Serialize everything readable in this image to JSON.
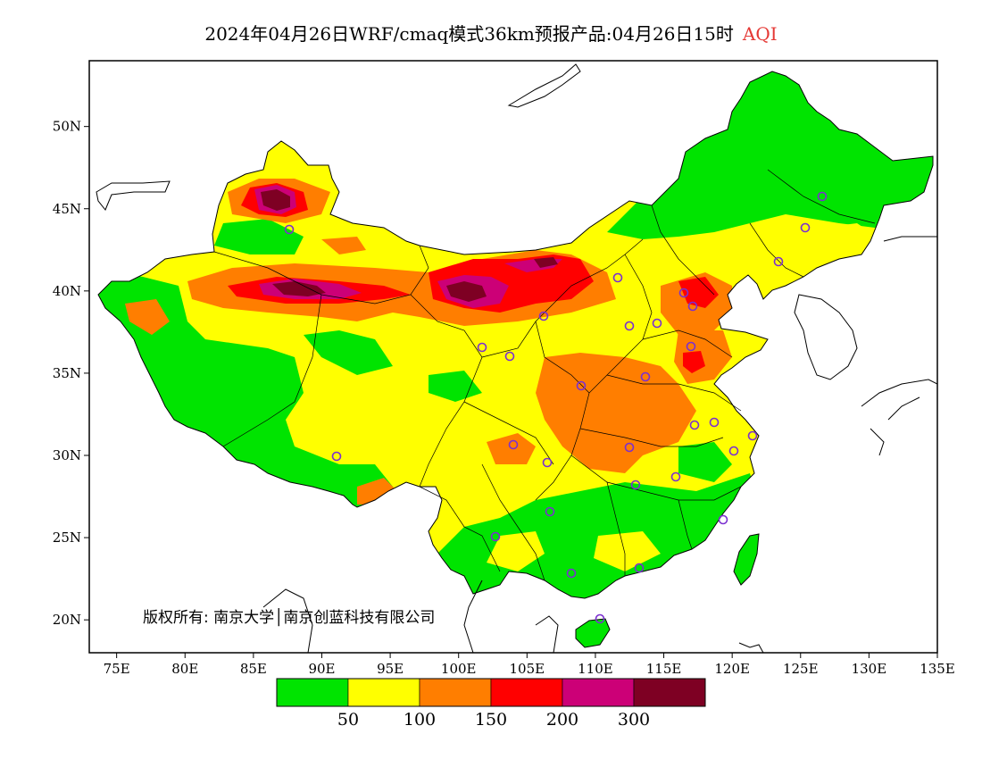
{
  "title": {
    "text": "2024年04月26日WRF/cmaq模式36km预报产品:04月26日15时",
    "variable": "AQI",
    "variable_color": "#e53935"
  },
  "map": {
    "lon_range": [
      73,
      135
    ],
    "lat_range": [
      18,
      54
    ],
    "lon_ticks": [
      {
        "value": 75,
        "label": "75E"
      },
      {
        "value": 80,
        "label": "80E"
      },
      {
        "value": 85,
        "label": "85E"
      },
      {
        "value": 90,
        "label": "90E"
      },
      {
        "value": 95,
        "label": "95E"
      },
      {
        "value": 100,
        "label": "100E"
      },
      {
        "value": 105,
        "label": "105E"
      },
      {
        "value": 110,
        "label": "110E"
      },
      {
        "value": 115,
        "label": "115E"
      },
      {
        "value": 120,
        "label": "120E"
      },
      {
        "value": 125,
        "label": "125E"
      },
      {
        "value": 130,
        "label": "130E"
      },
      {
        "value": 135,
        "label": "135E"
      }
    ],
    "lat_ticks": [
      {
        "value": 20,
        "label": "20N"
      },
      {
        "value": 25,
        "label": "25N"
      },
      {
        "value": 30,
        "label": "30N"
      },
      {
        "value": 35,
        "label": "35N"
      },
      {
        "value": 40,
        "label": "40N"
      },
      {
        "value": 45,
        "label": "45N"
      },
      {
        "value": 50,
        "label": "50N"
      }
    ],
    "copyright": "版权所有: 南京大学│南京创蓝科技有限公司",
    "city_marker_color": "#7b2fd0"
  },
  "legend": {
    "colors": [
      "#00e400",
      "#ffff00",
      "#ff7e00",
      "#ff0000",
      "#cc0077",
      "#7e0023"
    ],
    "labels": [
      "50",
      "100",
      "150",
      "200",
      "300"
    ]
  }
}
